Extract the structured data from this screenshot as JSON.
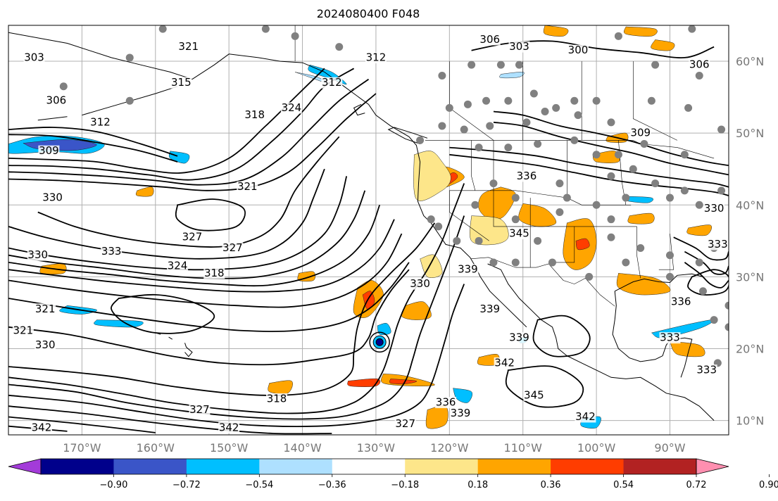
{
  "title": "2024080400 F048",
  "map": {
    "lon_range": [
      -180,
      -82
    ],
    "lat_range": [
      8,
      65
    ],
    "lat_labels": [
      "60°N",
      "50°N",
      "40°N",
      "30°N",
      "20°N",
      "10°N"
    ],
    "lon_labels": [
      "170°W",
      "160°W",
      "150°W",
      "140°W",
      "130°W",
      "120°W",
      "110°W",
      "100°W",
      "90°W"
    ]
  },
  "contour_labels": [
    {
      "text": "303",
      "lon": -176.5,
      "lat": 60.5
    },
    {
      "text": "306",
      "lon": -173.5,
      "lat": 54.5
    },
    {
      "text": "321",
      "lon": -155.5,
      "lat": 62.0
    },
    {
      "text": "315",
      "lon": -156.5,
      "lat": 57.0
    },
    {
      "text": "318",
      "lon": -146.5,
      "lat": 52.5
    },
    {
      "text": "324",
      "lon": -141.5,
      "lat": 53.5
    },
    {
      "text": "312",
      "lon": -136.0,
      "lat": 57.0
    },
    {
      "text": "312",
      "lon": -130.0,
      "lat": 60.5
    },
    {
      "text": "312",
      "lon": -167.5,
      "lat": 51.5
    },
    {
      "text": "309",
      "lon": -174.5,
      "lat": 47.5
    },
    {
      "text": "321",
      "lon": -147.5,
      "lat": 42.5
    },
    {
      "text": "330",
      "lon": -174.0,
      "lat": 41.0
    },
    {
      "text": "327",
      "lon": -155.0,
      "lat": 35.5
    },
    {
      "text": "327",
      "lon": -149.5,
      "lat": 34.0
    },
    {
      "text": "333",
      "lon": -166.0,
      "lat": 33.5
    },
    {
      "text": "324",
      "lon": -157.0,
      "lat": 31.5
    },
    {
      "text": "318",
      "lon": -152.0,
      "lat": 30.5
    },
    {
      "text": "330",
      "lon": -176.0,
      "lat": 33.0
    },
    {
      "text": "321",
      "lon": -175.0,
      "lat": 25.5
    },
    {
      "text": "321",
      "lon": -178.0,
      "lat": 22.5
    },
    {
      "text": "330",
      "lon": -175.0,
      "lat": 20.5
    },
    {
      "text": "318",
      "lon": -143.5,
      "lat": 13.0
    },
    {
      "text": "327",
      "lon": -154.0,
      "lat": 11.5
    },
    {
      "text": "342",
      "lon": -175.5,
      "lat": 9.0
    },
    {
      "text": "342",
      "lon": -150.0,
      "lat": 9.0
    },
    {
      "text": "327",
      "lon": -126.0,
      "lat": 9.5
    },
    {
      "text": "303",
      "lon": -110.5,
      "lat": 62.0
    },
    {
      "text": "300",
      "lon": -102.5,
      "lat": 61.5
    },
    {
      "text": "306",
      "lon": -114.5,
      "lat": 63.0
    },
    {
      "text": "306",
      "lon": -86.0,
      "lat": 59.5
    },
    {
      "text": "309",
      "lon": -94.0,
      "lat": 50.0
    },
    {
      "text": "336",
      "lon": -109.5,
      "lat": 44.0
    },
    {
      "text": "330",
      "lon": -84.0,
      "lat": 39.5
    },
    {
      "text": "345",
      "lon": -110.5,
      "lat": 36.0
    },
    {
      "text": "339",
      "lon": -117.5,
      "lat": 31.0
    },
    {
      "text": "339",
      "lon": -114.5,
      "lat": 25.5
    },
    {
      "text": "339",
      "lon": -110.5,
      "lat": 21.5
    },
    {
      "text": "336",
      "lon": -88.5,
      "lat": 26.5
    },
    {
      "text": "333",
      "lon": -90.0,
      "lat": 21.5
    },
    {
      "text": "333",
      "lon": -85.0,
      "lat": 17.0
    },
    {
      "text": "342",
      "lon": -112.5,
      "lat": 18.0
    },
    {
      "text": "345",
      "lon": -108.5,
      "lat": 13.5
    },
    {
      "text": "342",
      "lon": -101.5,
      "lat": 10.5
    },
    {
      "text": "330",
      "lon": -124.0,
      "lat": 29.0
    },
    {
      "text": "336",
      "lon": -120.5,
      "lat": 12.5
    },
    {
      "text": "339",
      "lon": -118.5,
      "lat": 11.0
    },
    {
      "text": "333",
      "lon": -83.5,
      "lat": 34.5
    }
  ],
  "colorbar": {
    "ticks": [
      "−0.90",
      "−0.72",
      "−0.54",
      "−0.36",
      "−0.18",
      "0.18",
      "0.36",
      "0.54",
      "0.72",
      "0.90"
    ],
    "colors": [
      "#a33bd9",
      "#00008b",
      "#3a55c8",
      "#00bfff",
      "#aee0ff",
      "#ffffff",
      "#fde68a",
      "#ffa500",
      "#ff3d00",
      "#b22222",
      "#ff8fb0"
    ]
  },
  "shading": {
    "pos_light": "#fde68a",
    "pos_med": "#ffa500",
    "pos_strong": "#ff3d00",
    "neg_light": "#aee0ff",
    "neg_med": "#00bfff",
    "neg_strong": "#3a55c8",
    "neg_deep": "#00008b"
  },
  "station_color": "#808080"
}
